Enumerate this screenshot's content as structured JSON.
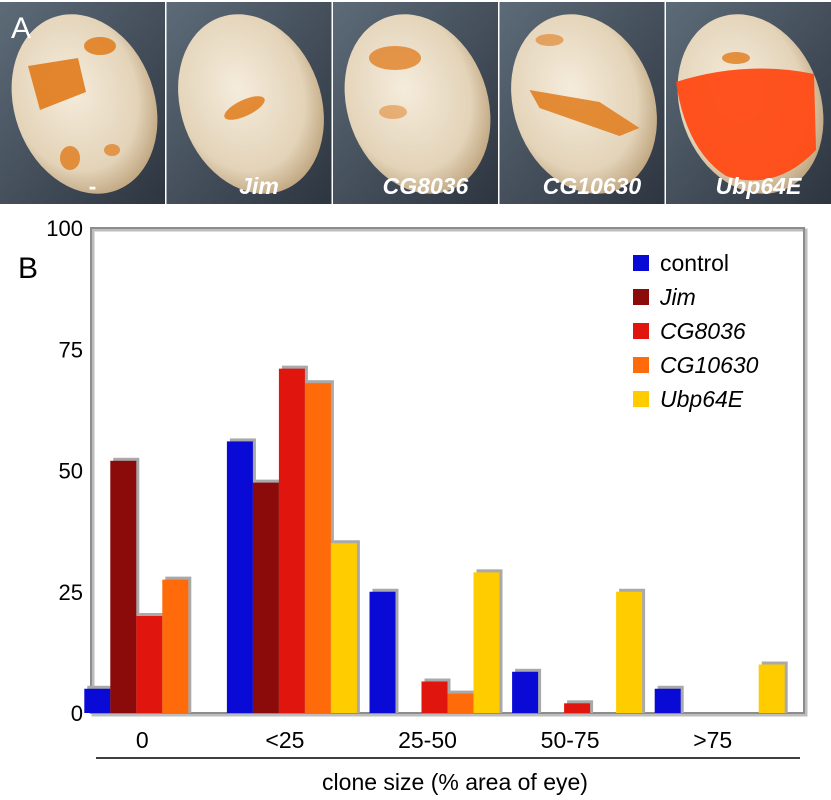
{
  "panel_a": {
    "label": "A",
    "photos": [
      {
        "caption": "-",
        "pattern": "scattered-patches"
      },
      {
        "caption": "Jim",
        "pattern": "small-patch"
      },
      {
        "caption": "CG8036",
        "pattern": "faint-patches"
      },
      {
        "caption": "CG10630",
        "pattern": "stripe"
      },
      {
        "caption": "Ubp64E",
        "pattern": "large-clone"
      }
    ]
  },
  "chart_data": {
    "type": "bar",
    "panel_label": "B",
    "title": "",
    "xlabel": "clone size (% area of eye)",
    "ylabel": "",
    "categories": [
      "0",
      "<25",
      "25-50",
      "50-75",
      ">75"
    ],
    "ylim": [
      0,
      100
    ],
    "yticks": [
      "0",
      "25",
      "50",
      "75",
      "100"
    ],
    "legend_position": "top-right",
    "grid": false,
    "series": [
      {
        "name": "control",
        "color": "#0a0ad6",
        "values": [
          5,
          56,
          25,
          8.5,
          5
        ]
      },
      {
        "name": "Jim",
        "color": "#8b0a0a",
        "values": [
          52,
          47.5,
          0,
          0,
          0
        ]
      },
      {
        "name": "CG8036",
        "color": "#e0150d",
        "values": [
          20,
          71,
          6.5,
          2,
          0
        ]
      },
      {
        "name": "CG10630",
        "color": "#ff6a0a",
        "values": [
          27.5,
          68,
          4,
          0,
          0
        ]
      },
      {
        "name": "Ubp64E",
        "color": "#ffcc00",
        "values": [
          0,
          35,
          29,
          25,
          10
        ]
      }
    ]
  }
}
